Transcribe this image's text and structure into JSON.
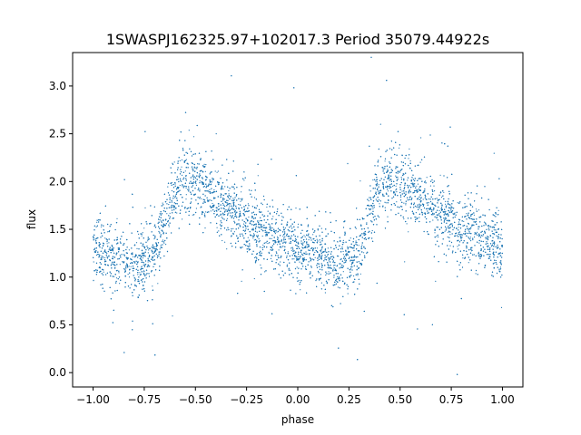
{
  "chart_data": {
    "type": "scatter",
    "title": "1SWASPJ162325.97+102017.3 Period 35079.44922s",
    "xlabel": "phase",
    "ylabel": "flux",
    "xlim": [
      -1.1,
      1.1
    ],
    "ylim": [
      -0.15,
      3.35
    ],
    "xticks": [
      -1.0,
      -0.75,
      -0.5,
      -0.25,
      0.0,
      0.25,
      0.5,
      0.75,
      1.0
    ],
    "xtick_labels": [
      "−1.00",
      "−0.75",
      "−0.50",
      "−0.25",
      "0.00",
      "0.25",
      "0.50",
      "0.75",
      "1.00"
    ],
    "yticks": [
      0.0,
      0.5,
      1.0,
      1.5,
      2.0,
      2.5,
      3.0
    ],
    "ytick_labels": [
      "0.0",
      "0.5",
      "1.0",
      "1.5",
      "2.0",
      "2.5",
      "3.0"
    ],
    "grid": false,
    "point_color": "#1f77b4",
    "series": [
      {
        "x": [
          -1.0,
          -0.9,
          -0.8,
          -0.7,
          -0.65,
          -0.6,
          -0.55,
          -0.5,
          -0.4,
          -0.3,
          -0.2,
          -0.1,
          0.0,
          0.1,
          0.2,
          0.3,
          0.35,
          0.4,
          0.45,
          0.5,
          0.6,
          0.7,
          0.8,
          0.9,
          1.0
        ],
        "y": [
          1.3,
          1.2,
          1.12,
          1.25,
          1.6,
          1.95,
          2.05,
          2.0,
          1.82,
          1.65,
          1.5,
          1.4,
          1.3,
          1.22,
          1.12,
          1.25,
          1.6,
          1.95,
          2.05,
          2.0,
          1.82,
          1.65,
          1.5,
          1.4,
          1.3
        ]
      }
    ]
  }
}
